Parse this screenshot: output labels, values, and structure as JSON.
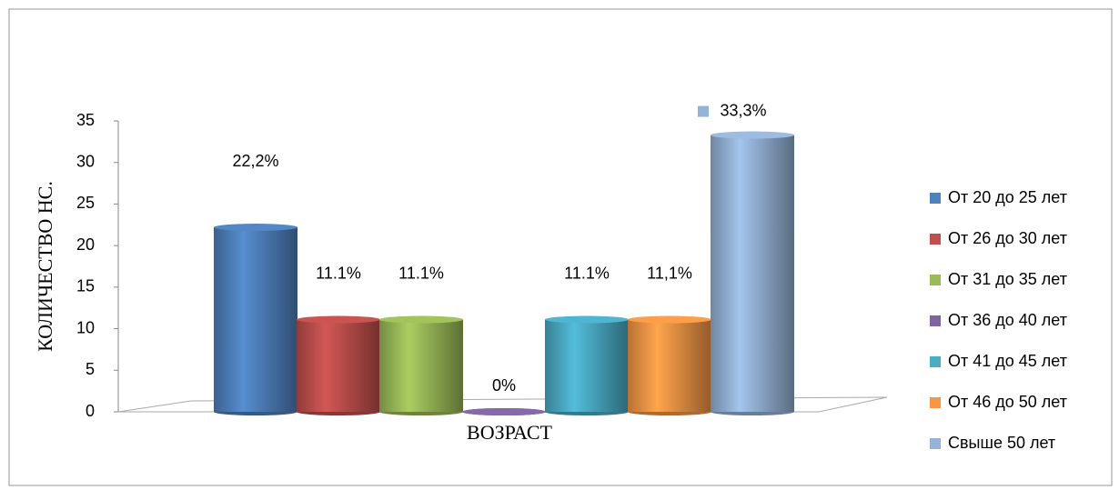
{
  "chart_data": {
    "type": "bar",
    "categories": [
      "ВОЗРАСТ"
    ],
    "y_label": "КОЛИЧЕСТВО НС.",
    "ylim": [
      0,
      35
    ],
    "yticks": [
      0,
      5,
      10,
      15,
      20,
      25,
      30,
      35
    ],
    "legend": "right",
    "series": [
      {
        "name": "От 20 до 25 лет",
        "color": "#4f81bd",
        "values": [
          22.2
        ],
        "value_labels": [
          "22,2%"
        ]
      },
      {
        "name": "От 26 до 30 лет",
        "color": "#c0504d",
        "values": [
          11.1
        ],
        "value_labels": [
          "11.1%"
        ]
      },
      {
        "name": "От 31 до 35 лет",
        "color": "#9bbb59",
        "values": [
          11.1
        ],
        "value_labels": [
          "11.1%"
        ]
      },
      {
        "name": "От 36 до 40 лет",
        "color": "#8064a2",
        "values": [
          0
        ],
        "value_labels": [
          "0%"
        ]
      },
      {
        "name": "От 41 до 45 лет",
        "color": "#4bacc6",
        "values": [
          11.1
        ],
        "value_labels": [
          "11.1%"
        ]
      },
      {
        "name": "От 46 до 50 лет",
        "color": "#f79646",
        "values": [
          11.1
        ],
        "value_labels": [
          "11,1%"
        ]
      },
      {
        "name": "Свыше 50 лет",
        "color": "#95b3d7",
        "values": [
          33.3
        ],
        "value_labels": [
          "33,3%"
        ]
      }
    ]
  }
}
